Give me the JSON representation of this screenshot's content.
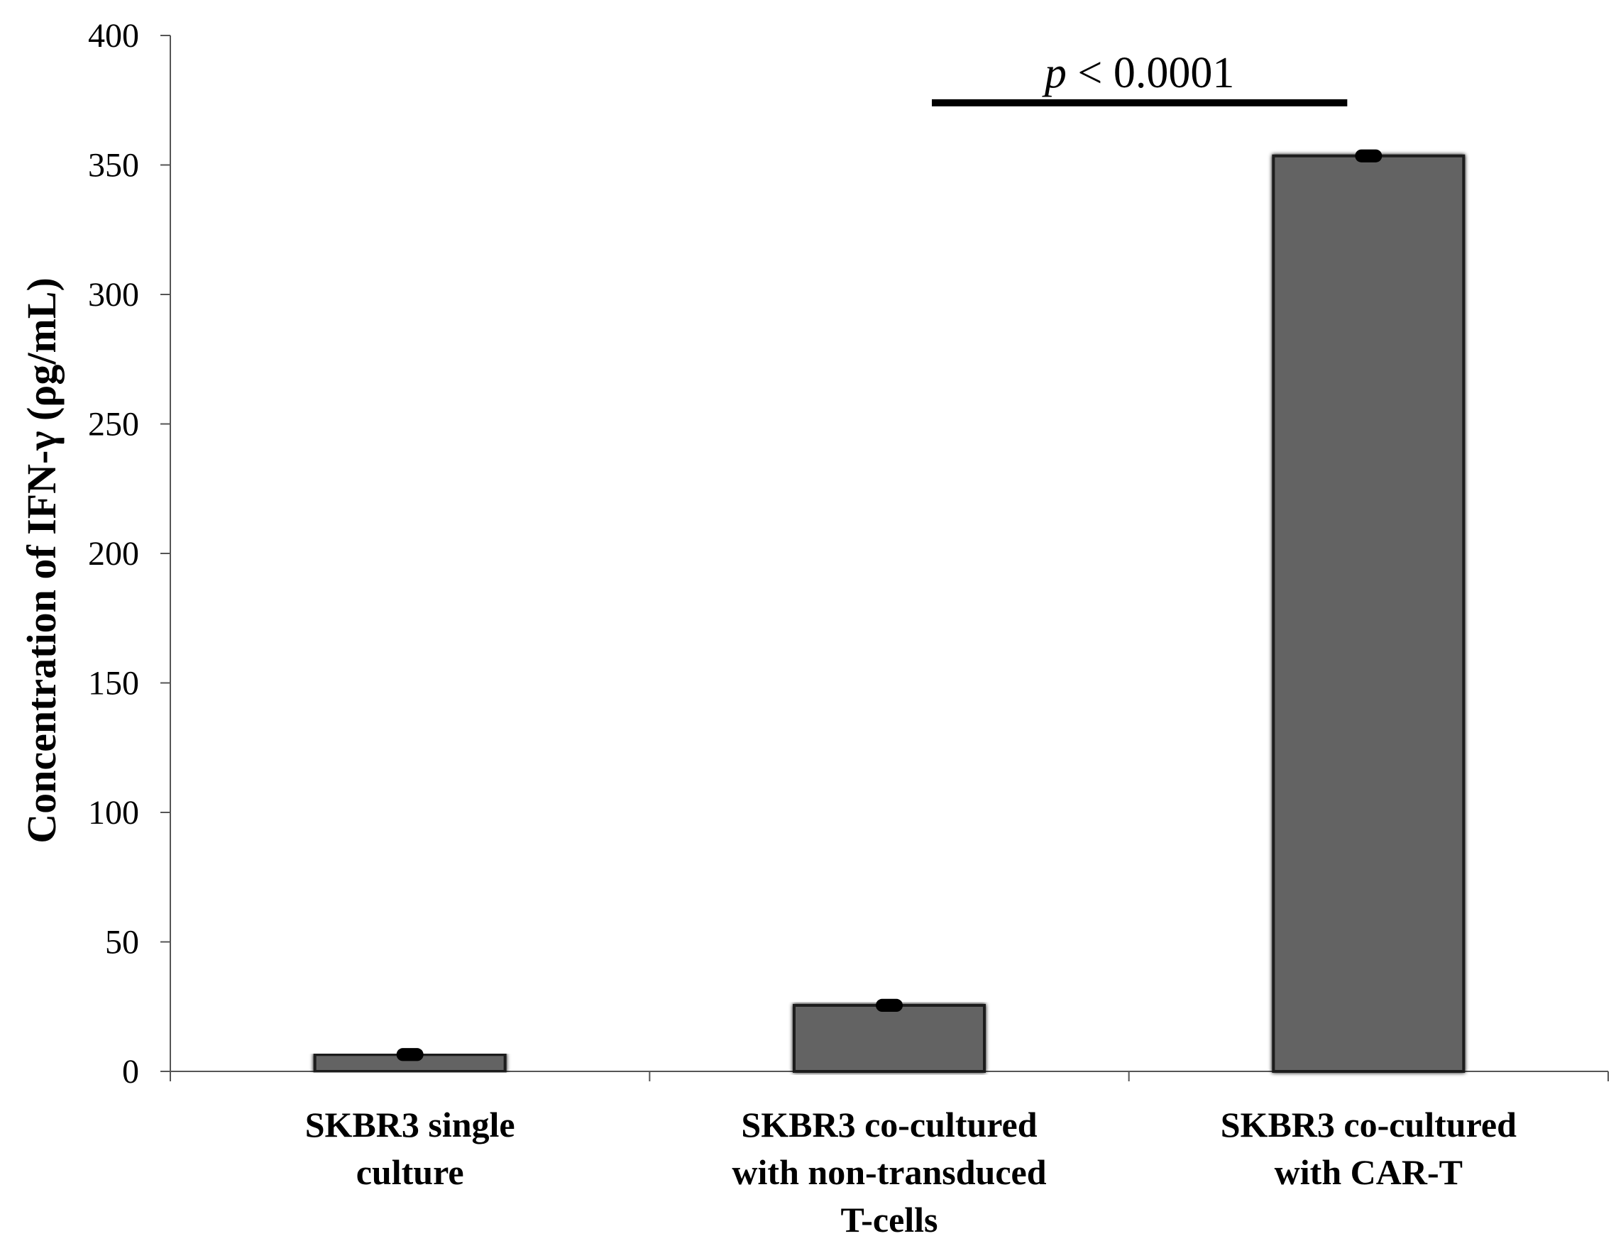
{
  "chart_data": {
    "type": "bar",
    "categories": [
      [
        "SKBR3 single",
        "culture"
      ],
      [
        "SKBR3 co-cultured",
        "with non-transduced",
        "T-cells"
      ],
      [
        "SKBR3 co-cultured",
        "with CAR-T"
      ]
    ],
    "values": [
      6.5,
      25.5,
      353.5
    ],
    "errors": [
      2.5,
      2.5,
      2.5
    ],
    "xlabel": "",
    "ylabel": "Concentration of IFN-γ (ρg/mL)",
    "ylim": [
      0,
      400
    ],
    "yticks": [
      0,
      50,
      100,
      150,
      200,
      250,
      300,
      350,
      400
    ],
    "grid": false,
    "legend": "none",
    "bar_color": "#636363",
    "annotation": {
      "p_symbol": "p",
      "text": " < 0.0001",
      "from_category": 1,
      "to_category": 2,
      "y_value": 374
    }
  }
}
